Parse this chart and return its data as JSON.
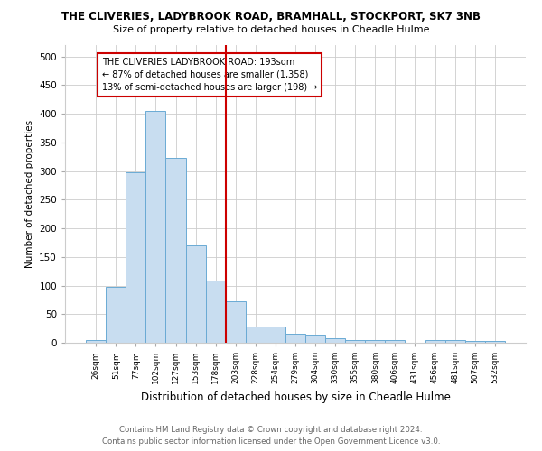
{
  "title1": "THE CLIVERIES, LADYBROOK ROAD, BRAMHALL, STOCKPORT, SK7 3NB",
  "title2": "Size of property relative to detached houses in Cheadle Hulme",
  "xlabel": "Distribution of detached houses by size in Cheadle Hulme",
  "ylabel": "Number of detached properties",
  "categories": [
    "26sqm",
    "51sqm",
    "77sqm",
    "102sqm",
    "127sqm",
    "153sqm",
    "178sqm",
    "203sqm",
    "228sqm",
    "254sqm",
    "279sqm",
    "304sqm",
    "330sqm",
    "355sqm",
    "380sqm",
    "406sqm",
    "431sqm",
    "456sqm",
    "481sqm",
    "507sqm",
    "532sqm"
  ],
  "values": [
    5,
    97,
    298,
    405,
    323,
    170,
    108,
    72,
    28,
    28,
    16,
    14,
    8,
    4,
    4,
    5,
    0,
    5,
    4,
    3,
    3
  ],
  "bar_color": "#c8ddf0",
  "bar_edge_color": "#6aaad4",
  "vline_color": "#cc0000",
  "annotation_text": "THE CLIVERIES LADYBROOK ROAD: 193sqm\n← 87% of detached houses are smaller (1,358)\n13% of semi-detached houses are larger (198) →",
  "annotation_box_color": "#ffffff",
  "annotation_box_edge_color": "#cc0000",
  "ylim": [
    0,
    520
  ],
  "yticks": [
    0,
    50,
    100,
    150,
    200,
    250,
    300,
    350,
    400,
    450,
    500
  ],
  "footer1": "Contains HM Land Registry data © Crown copyright and database right 2024.",
  "footer2": "Contains public sector information licensed under the Open Government Licence v3.0.",
  "background_color": "#ffffff",
  "grid_color": "#cccccc"
}
